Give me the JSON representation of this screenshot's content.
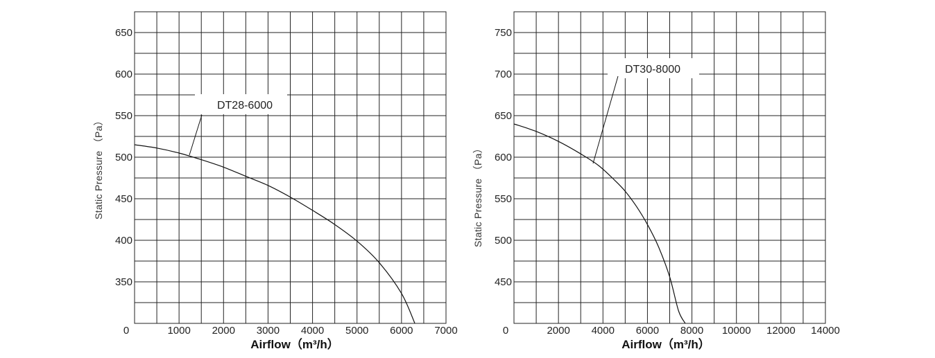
{
  "chart_data": [
    {
      "type": "line",
      "series": [
        {
          "name": "DT28-6000",
          "x": [
            0,
            500,
            1000,
            1500,
            2000,
            2500,
            3000,
            3500,
            4000,
            4500,
            5000,
            5500,
            6000,
            6300
          ],
          "y": [
            515,
            511,
            505,
            497,
            488,
            477,
            466,
            452,
            436,
            419,
            399,
            373,
            336,
            300
          ]
        }
      ],
      "xlabel": "Airflow（m³/h）",
      "ylabel": "Static Pressure （Pa）",
      "x_ticks": [
        "1000",
        "2000",
        "3000",
        "4000",
        "5000",
        "6000",
        "7000"
      ],
      "y_ticks": [
        "350",
        "400",
        "450",
        "500",
        "550",
        "600",
        "650"
      ],
      "origin_label": "0",
      "xlim": [
        0,
        7000
      ],
      "ylim": [
        300,
        675
      ],
      "grid": true
    },
    {
      "type": "line",
      "series": [
        {
          "name": "DT30-8000",
          "x": [
            0,
            1000,
            2000,
            3000,
            3800,
            4500,
            5000,
            5500,
            6000,
            6500,
            7000,
            7400,
            7700
          ],
          "y": [
            640,
            631,
            619,
            604,
            590,
            573,
            559,
            541,
            519,
            492,
            456,
            415,
            400
          ]
        }
      ],
      "xlabel": "Airflow（m³/h）",
      "ylabel": "Static Pressure （Pa）",
      "x_ticks": [
        "2000",
        "4000",
        "6000",
        "8000",
        "10000",
        "12000",
        "14000"
      ],
      "y_ticks": [
        "450",
        "500",
        "550",
        "600",
        "650",
        "700",
        "750"
      ],
      "origin_label": "0",
      "xlim": [
        0,
        14000
      ],
      "ylim": [
        400,
        775
      ],
      "grid": true
    }
  ]
}
